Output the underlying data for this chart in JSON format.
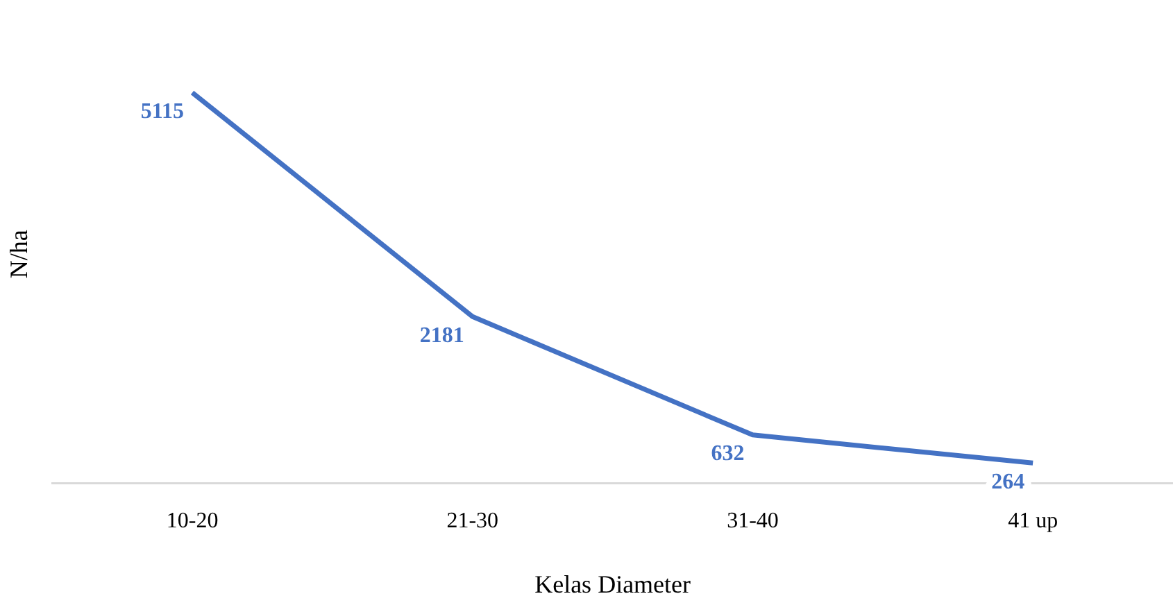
{
  "chart_data": {
    "type": "line",
    "xlabel": "Kelas Diameter",
    "ylabel": "N/ha",
    "categories": [
      "10-20",
      "21-30",
      "31-40",
      "41 up"
    ],
    "series": [
      {
        "color": "#4472c4",
        "values": [
          5115,
          2181,
          632,
          264
        ]
      }
    ],
    "data_labels": true,
    "grid": false,
    "legend": false,
    "marker": "none"
  }
}
